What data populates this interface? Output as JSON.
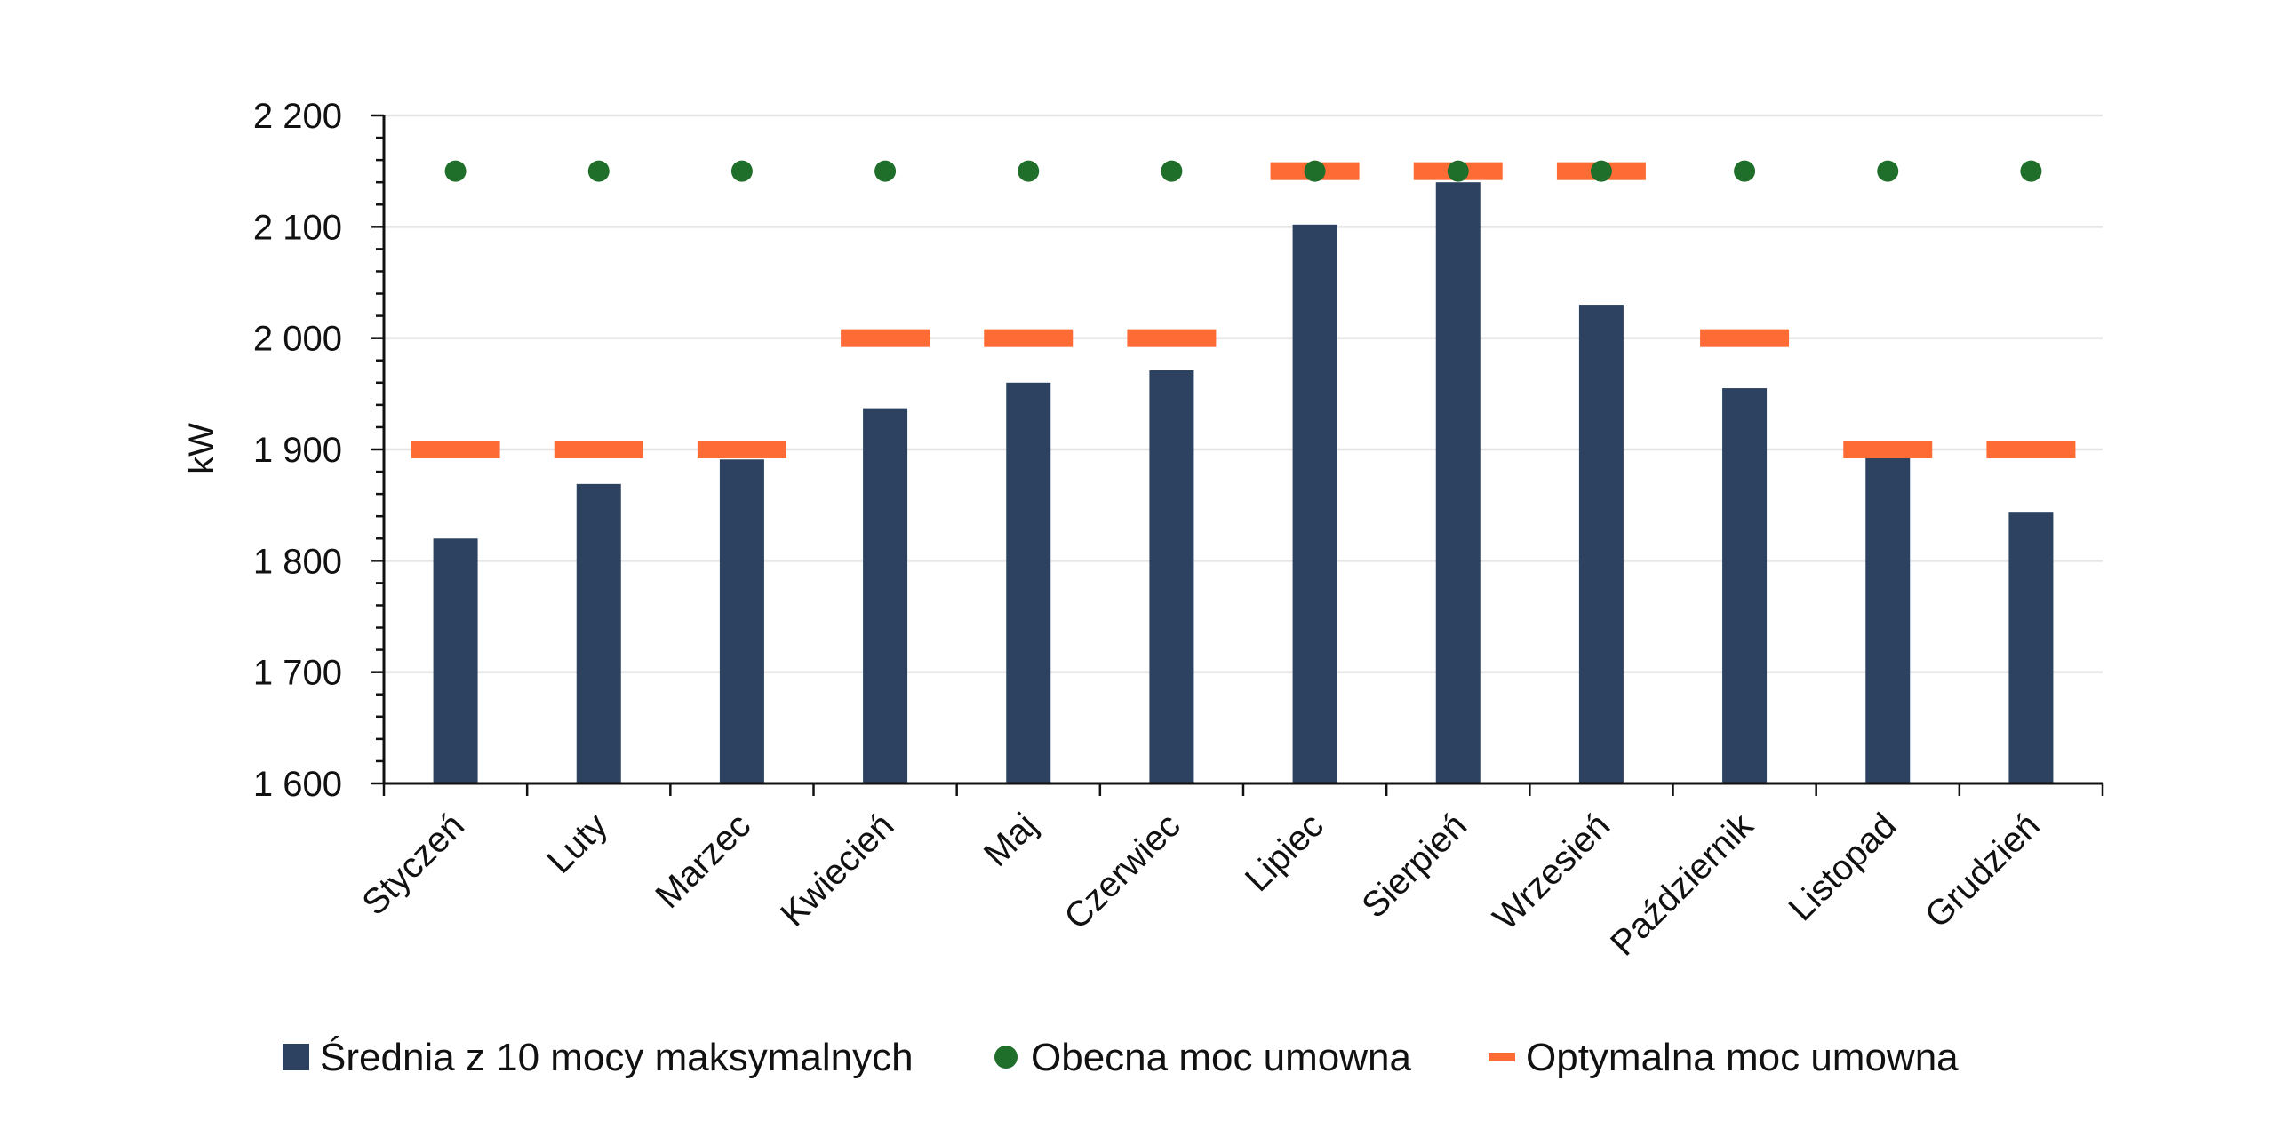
{
  "colors": {
    "bar": "#2C4260",
    "current": "#1F6E2A",
    "optimal": "#FF6B35",
    "grid": "#E3E3E3",
    "axis": "#111111"
  },
  "chart_data": {
    "type": "bar",
    "title": "",
    "xlabel": "",
    "ylabel": "kW",
    "ylim": [
      1600,
      2200
    ],
    "yticks": [
      1600,
      1700,
      1800,
      1900,
      2000,
      2100,
      2200
    ],
    "ytick_labels": [
      "1 600",
      "1 700",
      "1 800",
      "1 900",
      "2 000",
      "2 100",
      "2 200"
    ],
    "grid": true,
    "legend_position": "bottom",
    "categories": [
      "Styczeń",
      "Luty",
      "Marzec",
      "Kwiecień",
      "Maj",
      "Czerwiec",
      "Lipiec",
      "Sierpień",
      "Wrzesień",
      "Październik",
      "Listopad",
      "Grudzień"
    ],
    "series": [
      {
        "name": "Średnia z 10 mocy maksymalnych",
        "kind": "bar",
        "values": [
          1820,
          1869,
          1891,
          1937,
          1960,
          1971,
          2102,
          2140,
          2030,
          1955,
          1893,
          1844
        ]
      },
      {
        "name": "Obecna moc umowna",
        "kind": "point",
        "values": [
          2150,
          2150,
          2150,
          2150,
          2150,
          2150,
          2150,
          2150,
          2150,
          2150,
          2150,
          2150
        ]
      },
      {
        "name": "Optymalna moc umowna",
        "kind": "dash",
        "values": [
          1900,
          1900,
          1900,
          2000,
          2000,
          2000,
          2150,
          2150,
          2150,
          2000,
          1900,
          1900
        ]
      }
    ]
  }
}
